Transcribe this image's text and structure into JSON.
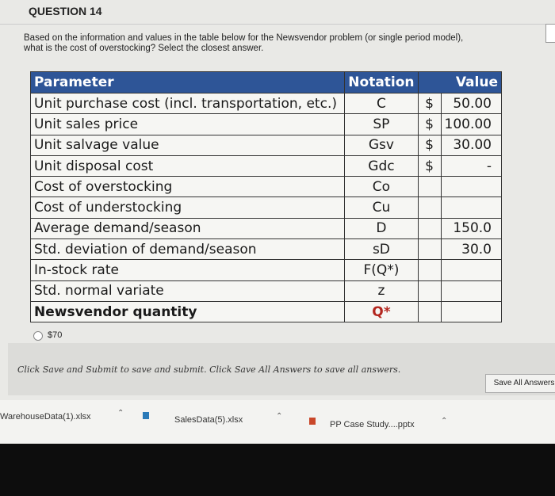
{
  "question": {
    "title": "QUESTION 14",
    "text_lines": [
      "Based on the information and values in the table below for the Newsvendor problem (or single period model),",
      "what is the cost of overstocking? Select the closest answer."
    ]
  },
  "table": {
    "header": [
      "Parameter",
      "Notation",
      "Value"
    ],
    "rows": [
      [
        "Unit purchase cost (incl. transportation, etc.)",
        "C",
        "$",
        "50.00"
      ],
      [
        "Unit sales price",
        "SP",
        "$",
        "100.00"
      ],
      [
        "Unit salvage value",
        "Gsv",
        "$",
        "30.00"
      ],
      [
        "Unit disposal cost",
        "Gdc",
        "$",
        "-"
      ],
      [
        "Cost of overstocking",
        "Co",
        "",
        ""
      ],
      [
        "Cost of understocking",
        "Cu",
        "",
        ""
      ],
      [
        "Average demand/season",
        "D",
        "",
        "150.0"
      ],
      [
        "Std. deviation of demand/season",
        "sD",
        "",
        "30.0"
      ],
      [
        "In-stock rate",
        "F(Q*)",
        "",
        ""
      ],
      [
        "Std. normal variate",
        "z",
        "",
        ""
      ],
      [
        "Newsvendor quantity",
        "Q*",
        "",
        ""
      ]
    ]
  },
  "option": "$70",
  "instruction": "Click Save and Submit to save and submit. Click Save All Answers to save all answers.",
  "save_button": "Save All Answers",
  "downloads": [
    "WarehouseData(1).xlsx",
    "SalesData(5).xlsx",
    "PP Case Study....pptx"
  ]
}
